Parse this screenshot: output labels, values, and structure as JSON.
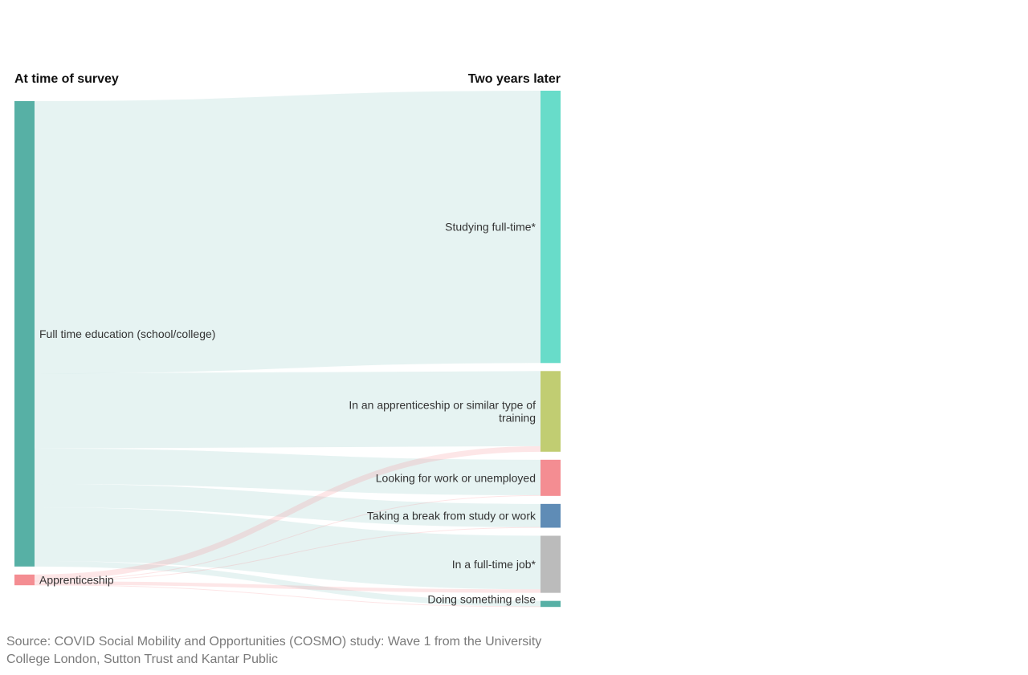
{
  "chart_data": {
    "type": "sankey",
    "headers": {
      "left": "At time of survey",
      "right": "Two years later"
    },
    "sources": [
      {
        "id": "fte",
        "label": "Full time education (school/college)",
        "color": "#57b0a5"
      },
      {
        "id": "app",
        "label": "Apprenticeship",
        "color": "#f48d92"
      }
    ],
    "targets": [
      {
        "id": "study",
        "label": "Studying full-time*",
        "color": "#68dcc9"
      },
      {
        "id": "appr",
        "label": "In an apprenticeship or similar type of training",
        "label_lines": [
          "In an apprenticeship or similar type of",
          "training"
        ],
        "color": "#c1cd72"
      },
      {
        "id": "look",
        "label": "Looking for work or unemployed",
        "color": "#f48d92"
      },
      {
        "id": "break",
        "label": "Taking a break from study or work",
        "color": "#5f8cb6"
      },
      {
        "id": "job",
        "label": "In a full-time job*",
        "color": "#bbbbbb"
      },
      {
        "id": "else",
        "label": "Doing something else",
        "color": "#57b0a5"
      }
    ],
    "flows": [
      {
        "source": "fte",
        "target": "study",
        "value": 58.4
      },
      {
        "source": "fte",
        "target": "appr",
        "value": 16.1
      },
      {
        "source": "fte",
        "target": "look",
        "value": 7.6
      },
      {
        "source": "fte",
        "target": "break",
        "value": 5.0
      },
      {
        "source": "fte",
        "target": "job",
        "value": 11.5
      },
      {
        "source": "fte",
        "target": "else",
        "value": 1.2
      },
      {
        "source": "app",
        "target": "appr",
        "value": 1.2
      },
      {
        "source": "app",
        "target": "look",
        "value": 0.15
      },
      {
        "source": "app",
        "target": "break",
        "value": 0.1
      },
      {
        "source": "app",
        "target": "job",
        "value": 0.75
      },
      {
        "source": "app",
        "target": "else",
        "value": 0.1
      }
    ]
  },
  "source_note": "Source: COVID Social Mobility and Opportunities (COSMO) study: Wave 1 from the University College London, Sutton Trust and Kantar Public"
}
